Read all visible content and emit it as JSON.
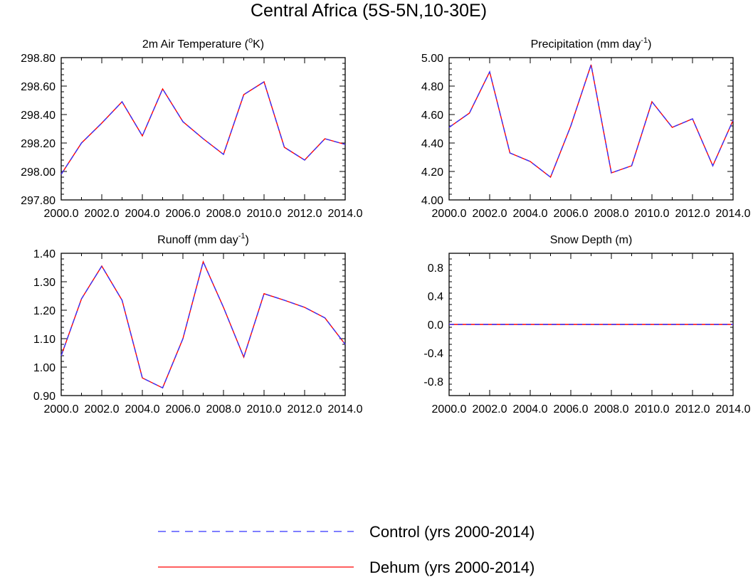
{
  "title": "Central Africa (5S-5N,10-30E)",
  "legend": {
    "position": "bottom-center",
    "items": [
      {
        "label": "Control (yrs 2000-2014)",
        "color": "#3333ff",
        "style": "dashed"
      },
      {
        "label": "Dehum (yrs 2000-2014)",
        "color": "#ff0000",
        "style": "solid"
      }
    ]
  },
  "colors": {
    "control": "#3333ff",
    "dehum": "#ff0000"
  },
  "chart_data": [
    {
      "type": "line",
      "title_parts": [
        "2m Air Temperature (",
        "o",
        "K)"
      ],
      "xlim": [
        2000,
        2014
      ],
      "ylim": [
        297.8,
        298.8
      ],
      "x_ticks": [
        "2000.0",
        "2002.0",
        "2004.0",
        "2006.0",
        "2008.0",
        "2010.0",
        "2012.0",
        "2014.0"
      ],
      "y_ticks": [
        "297.80",
        "298.00",
        "298.20",
        "298.40",
        "298.60",
        "298.80"
      ],
      "y_tick_values": [
        297.8,
        298.0,
        298.2,
        298.4,
        298.6,
        298.8
      ],
      "x": [
        2000,
        2001,
        2002,
        2003,
        2004,
        2005,
        2006,
        2007,
        2008,
        2009,
        2010,
        2011,
        2012,
        2013,
        2014
      ],
      "series": [
        {
          "name": "Control (yrs 2000-2014)",
          "values": [
            297.98,
            298.2,
            298.34,
            298.49,
            298.25,
            298.58,
            298.35,
            298.23,
            298.12,
            298.54,
            298.63,
            298.17,
            298.08,
            298.23,
            298.19
          ]
        },
        {
          "name": "Dehum (yrs 2000-2014)",
          "values": [
            297.98,
            298.2,
            298.34,
            298.49,
            298.25,
            298.58,
            298.35,
            298.23,
            298.12,
            298.54,
            298.63,
            298.17,
            298.08,
            298.23,
            298.19
          ]
        }
      ]
    },
    {
      "type": "line",
      "title_parts": [
        "Precipitation (mm day",
        "-1",
        ")"
      ],
      "xlim": [
        2000,
        2014
      ],
      "ylim": [
        4.0,
        5.0
      ],
      "x_ticks": [
        "2000.0",
        "2002.0",
        "2004.0",
        "2006.0",
        "2008.0",
        "2010.0",
        "2012.0",
        "2014.0"
      ],
      "y_ticks": [
        "4.00",
        "4.20",
        "4.40",
        "4.60",
        "4.80",
        "5.00"
      ],
      "y_tick_values": [
        4.0,
        4.2,
        4.4,
        4.6,
        4.8,
        5.0
      ],
      "x": [
        2000,
        2001,
        2002,
        2003,
        2004,
        2005,
        2006,
        2007,
        2008,
        2009,
        2010,
        2011,
        2012,
        2013,
        2014
      ],
      "series": [
        {
          "name": "Control (yrs 2000-2014)",
          "values": [
            4.51,
            4.61,
            4.9,
            4.33,
            4.27,
            4.16,
            4.52,
            4.95,
            4.19,
            4.24,
            4.69,
            4.51,
            4.57,
            4.24,
            4.56
          ]
        },
        {
          "name": "Dehum (yrs 2000-2014)",
          "values": [
            4.51,
            4.61,
            4.9,
            4.33,
            4.27,
            4.16,
            4.52,
            4.95,
            4.19,
            4.24,
            4.69,
            4.51,
            4.57,
            4.24,
            4.56
          ]
        }
      ]
    },
    {
      "type": "line",
      "title_parts": [
        "Runoff (mm day",
        "-1",
        ")"
      ],
      "xlim": [
        2000,
        2014
      ],
      "ylim": [
        0.9,
        1.4
      ],
      "x_ticks": [
        "2000.0",
        "2002.0",
        "2004.0",
        "2006.0",
        "2008.0",
        "2010.0",
        "2012.0",
        "2014.0"
      ],
      "y_ticks": [
        "0.90",
        "1.00",
        "1.10",
        "1.20",
        "1.30",
        "1.40"
      ],
      "y_tick_values": [
        0.9,
        1.0,
        1.1,
        1.2,
        1.3,
        1.4
      ],
      "x": [
        2000,
        2001,
        2002,
        2003,
        2004,
        2005,
        2006,
        2007,
        2008,
        2009,
        2010,
        2011,
        2012,
        2013,
        2014
      ],
      "series": [
        {
          "name": "Control (yrs 2000-2014)",
          "values": [
            1.04,
            1.24,
            1.355,
            1.235,
            0.962,
            0.927,
            1.1,
            1.37,
            1.21,
            1.035,
            1.258,
            1.235,
            1.21,
            1.173,
            1.08
          ]
        },
        {
          "name": "Dehum (yrs 2000-2014)",
          "values": [
            1.04,
            1.24,
            1.355,
            1.235,
            0.962,
            0.927,
            1.1,
            1.37,
            1.21,
            1.035,
            1.258,
            1.235,
            1.21,
            1.173,
            1.08
          ]
        }
      ]
    },
    {
      "type": "line",
      "title_parts": [
        "Snow Depth (m)",
        "",
        ""
      ],
      "xlim": [
        2000,
        2014
      ],
      "ylim": [
        -1.0,
        1.0
      ],
      "x_ticks": [
        "2000.0",
        "2002.0",
        "2004.0",
        "2006.0",
        "2008.0",
        "2010.0",
        "2012.0",
        "2014.0"
      ],
      "y_ticks": [
        "-0.8",
        "-0.4",
        "0.0",
        "0.4",
        "0.8"
      ],
      "y_tick_values": [
        -0.8,
        -0.4,
        0.0,
        0.4,
        0.8
      ],
      "x": [
        2000,
        2001,
        2002,
        2003,
        2004,
        2005,
        2006,
        2007,
        2008,
        2009,
        2010,
        2011,
        2012,
        2013,
        2014
      ],
      "series": [
        {
          "name": "Control (yrs 2000-2014)",
          "values": [
            0,
            0,
            0,
            0,
            0,
            0,
            0,
            0,
            0,
            0,
            0,
            0,
            0,
            0,
            0
          ]
        },
        {
          "name": "Dehum (yrs 2000-2014)",
          "values": [
            0,
            0,
            0,
            0,
            0,
            0,
            0,
            0,
            0,
            0,
            0,
            0,
            0,
            0,
            0
          ]
        }
      ]
    }
  ]
}
